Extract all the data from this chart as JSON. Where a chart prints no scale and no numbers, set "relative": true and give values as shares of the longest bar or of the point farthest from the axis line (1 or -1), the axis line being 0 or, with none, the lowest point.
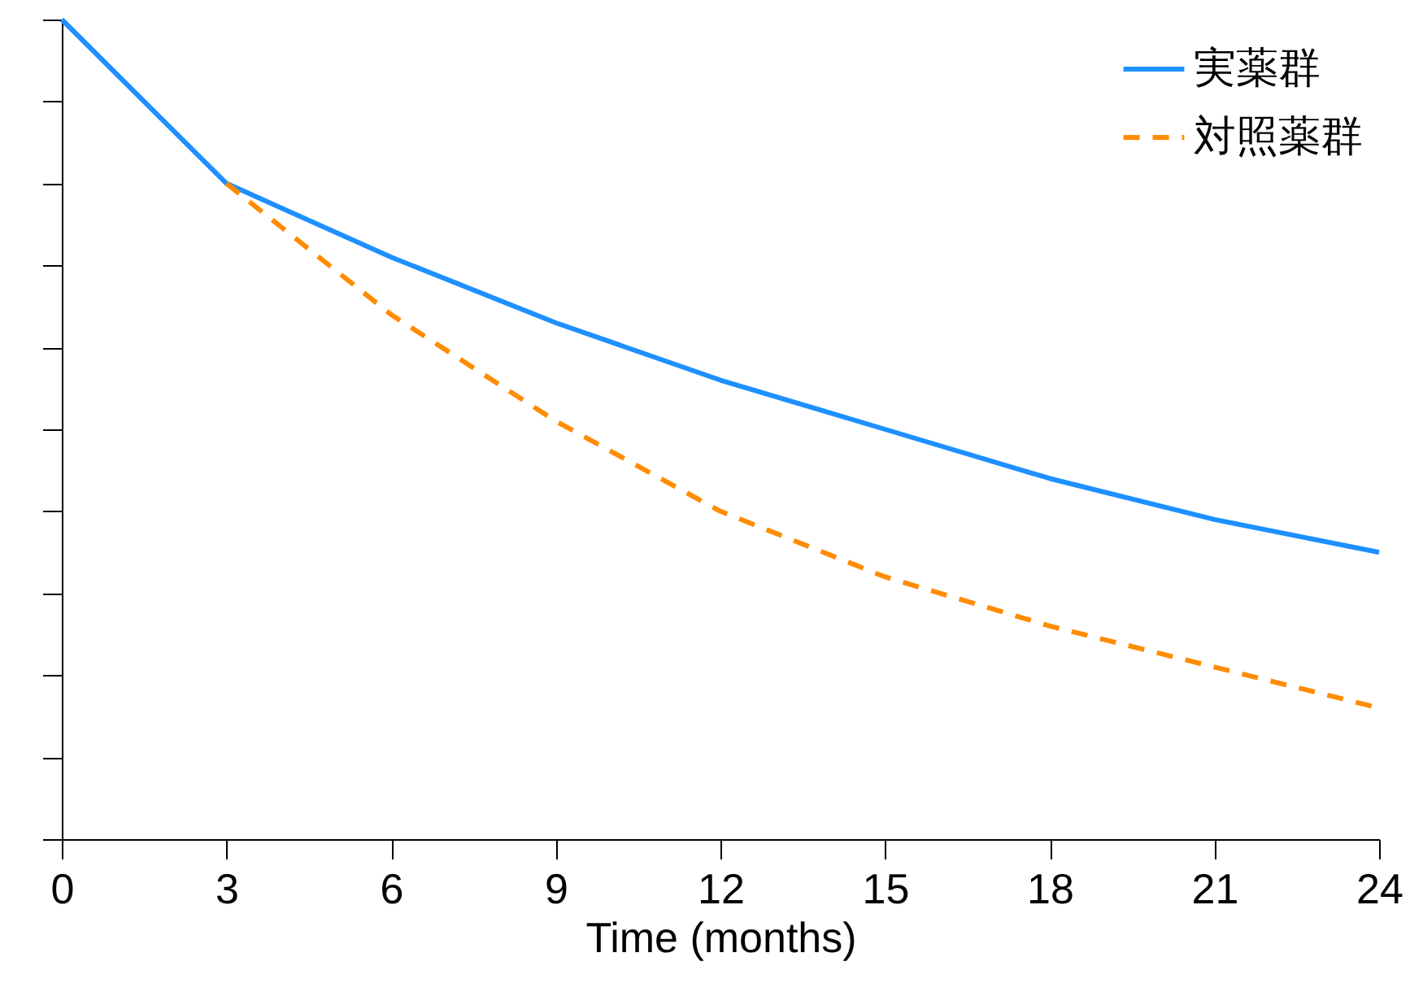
{
  "chart_data": {
    "type": "line",
    "xlabel": "Time (months)",
    "relative": true,
    "xlim": [
      0,
      24
    ],
    "xticks": [
      0,
      3,
      6,
      9,
      12,
      15,
      18,
      21,
      24
    ],
    "legend": "top right",
    "grid": false,
    "series": [
      {
        "name": "実薬群",
        "color": "#1e90ff",
        "line_style": "solid",
        "x": [
          0,
          3,
          6,
          9,
          12,
          15,
          18,
          21,
          24
        ],
        "values": [
          1.0,
          0.8,
          0.71,
          0.63,
          0.56,
          0.5,
          0.44,
          0.39,
          0.35
        ]
      },
      {
        "name": "対照薬群",
        "color": "#ff8c00",
        "line_style": "dashed",
        "x": [
          3,
          6,
          9,
          12,
          15,
          18,
          21,
          24
        ],
        "values": [
          0.8,
          0.64,
          0.51,
          0.4,
          0.32,
          0.26,
          0.21,
          0.16
        ]
      }
    ]
  }
}
